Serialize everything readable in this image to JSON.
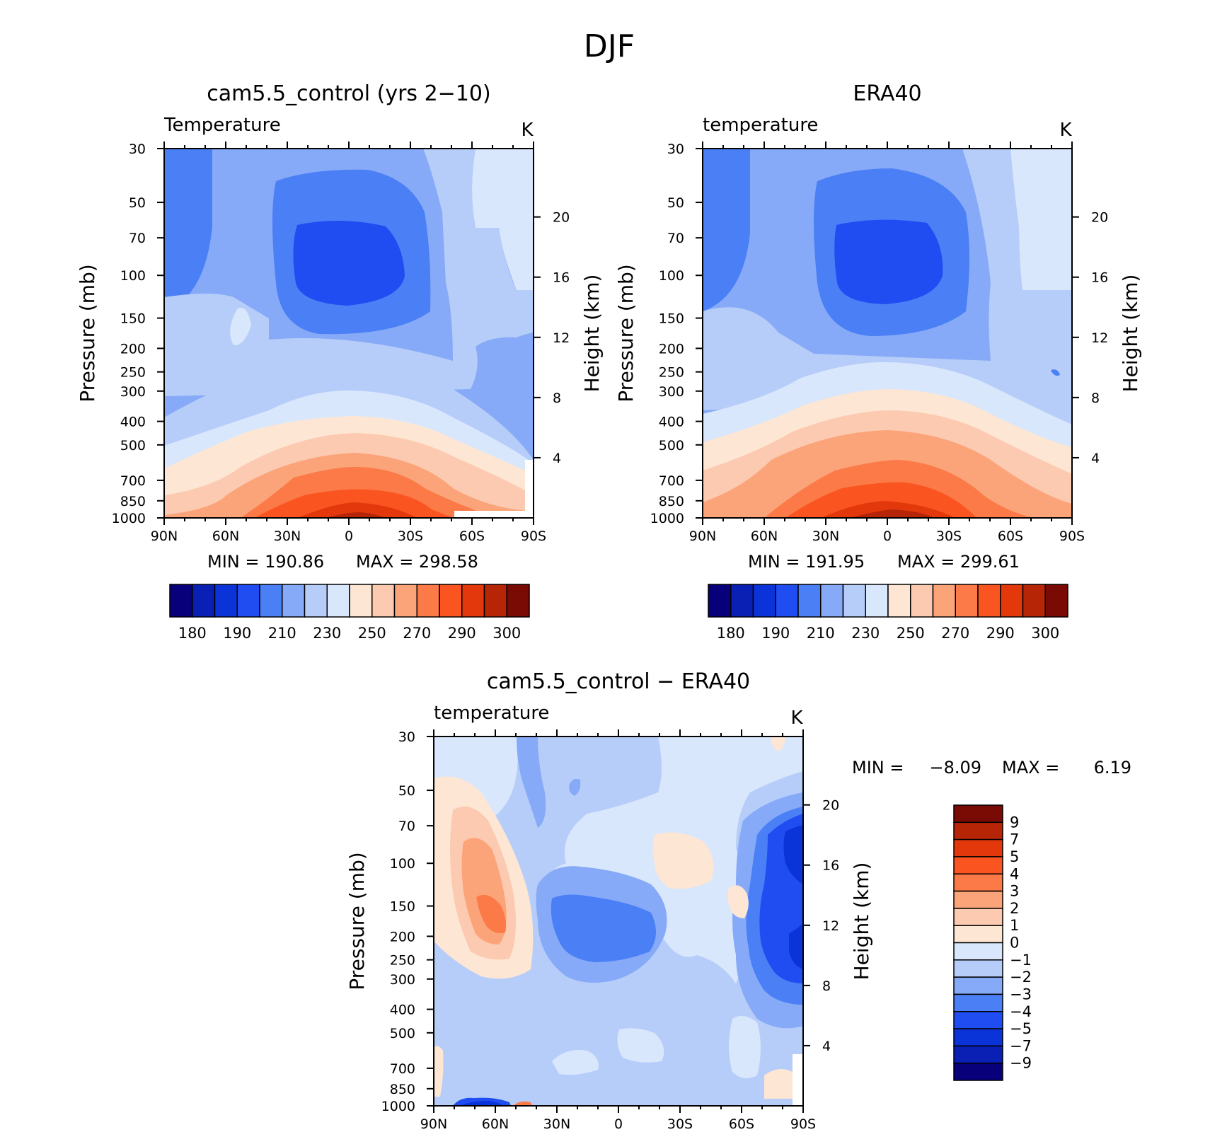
{
  "figure": {
    "title": "DJF"
  },
  "chart_data": [
    {
      "type": "contour",
      "title": "cam5.5_control (yrs 2−10)",
      "left_label": "Temperature",
      "units": "K",
      "ylabel": "Pressure (mb)",
      "ylabel_right": "Height (km)",
      "x_ticks": [
        "90N",
        "60N",
        "30N",
        "0",
        "30S",
        "60S",
        "90S"
      ],
      "y_ticks": [
        30,
        50,
        70,
        100,
        150,
        200,
        250,
        300,
        400,
        500,
        700,
        850,
        1000
      ],
      "y_right_ticks": [
        20,
        16,
        12,
        8,
        4
      ],
      "ylim": [
        1000,
        30
      ],
      "min_text": "MIN =  190.86",
      "max_text": "MAX =  298.58",
      "min": 190.86,
      "max": 298.58,
      "levels": [
        180,
        185,
        190,
        200,
        210,
        220,
        230,
        240,
        250,
        260,
        270,
        280,
        290,
        295,
        300
      ],
      "colorbar_labels": [
        "180",
        "190",
        "210",
        "230",
        "250",
        "270",
        "290",
        "300"
      ],
      "colors": [
        "#08007a",
        "#0a1fb4",
        "#0b34d8",
        "#1f4df2",
        "#4a7ff5",
        "#86aaf7",
        "#b7cdf9",
        "#d8e7fc",
        "#fde6d3",
        "#fccab0",
        "#fba47a",
        "#fb7a47",
        "#fa5520",
        "#e2380c",
        "#b52506",
        "#7a0a04"
      ]
    },
    {
      "type": "contour",
      "title": "ERA40",
      "left_label": "temperature",
      "units": "K",
      "ylabel": "Pressure (mb)",
      "ylabel_right": "Height (km)",
      "x_ticks": [
        "90N",
        "60N",
        "30N",
        "0",
        "30S",
        "60S",
        "90S"
      ],
      "y_ticks": [
        30,
        50,
        70,
        100,
        150,
        200,
        250,
        300,
        400,
        500,
        700,
        850,
        1000
      ],
      "y_right_ticks": [
        20,
        16,
        12,
        8,
        4
      ],
      "ylim": [
        1000,
        30
      ],
      "min_text": "MIN =  191.95",
      "max_text": "MAX =  299.61",
      "min": 191.95,
      "max": 299.61,
      "levels": [
        180,
        185,
        190,
        200,
        210,
        220,
        230,
        240,
        250,
        260,
        270,
        280,
        290,
        295,
        300
      ],
      "colorbar_labels": [
        "180",
        "190",
        "210",
        "230",
        "250",
        "270",
        "290",
        "300"
      ],
      "colors": [
        "#08007a",
        "#0a1fb4",
        "#0b34d8",
        "#1f4df2",
        "#4a7ff5",
        "#86aaf7",
        "#b7cdf9",
        "#d8e7fc",
        "#fde6d3",
        "#fccab0",
        "#fba47a",
        "#fb7a47",
        "#fa5520",
        "#e2380c",
        "#b52506",
        "#7a0a04"
      ]
    },
    {
      "type": "contour",
      "title": "cam5.5_control − ERA40",
      "left_label": "temperature",
      "units": "K",
      "ylabel": "Pressure (mb)",
      "ylabel_right": "Height (km)",
      "x_ticks": [
        "90N",
        "60N",
        "30N",
        "0",
        "30S",
        "60S",
        "90S"
      ],
      "y_ticks": [
        30,
        50,
        70,
        100,
        150,
        200,
        250,
        300,
        400,
        500,
        700,
        850,
        1000
      ],
      "y_right_ticks": [
        20,
        16,
        12,
        8,
        4
      ],
      "ylim": [
        1000,
        30
      ],
      "min_label": "MIN =",
      "min_value": "−8.09",
      "max_label": "MAX =",
      "max_value": "6.19",
      "min": -8.09,
      "max": 6.19,
      "levels": [
        -9,
        -7,
        -5,
        -4,
        -3,
        -2,
        -1,
        0,
        1,
        2,
        3,
        4,
        5,
        7,
        9
      ],
      "colorbar_labels": [
        "9",
        "7",
        "5",
        "4",
        "3",
        "2",
        "1",
        "0",
        "−1",
        "−2",
        "−3",
        "−4",
        "−5",
        "−7",
        "−9"
      ],
      "colors": [
        "#7a0a04",
        "#b52506",
        "#e2380c",
        "#fa5520",
        "#fb7a47",
        "#fba47a",
        "#fccab0",
        "#fde6d3",
        "#d8e7fc",
        "#b7cdf9",
        "#86aaf7",
        "#4a7ff5",
        "#1f4df2",
        "#0b34d8",
        "#0a1fb4",
        "#08007a"
      ]
    }
  ]
}
